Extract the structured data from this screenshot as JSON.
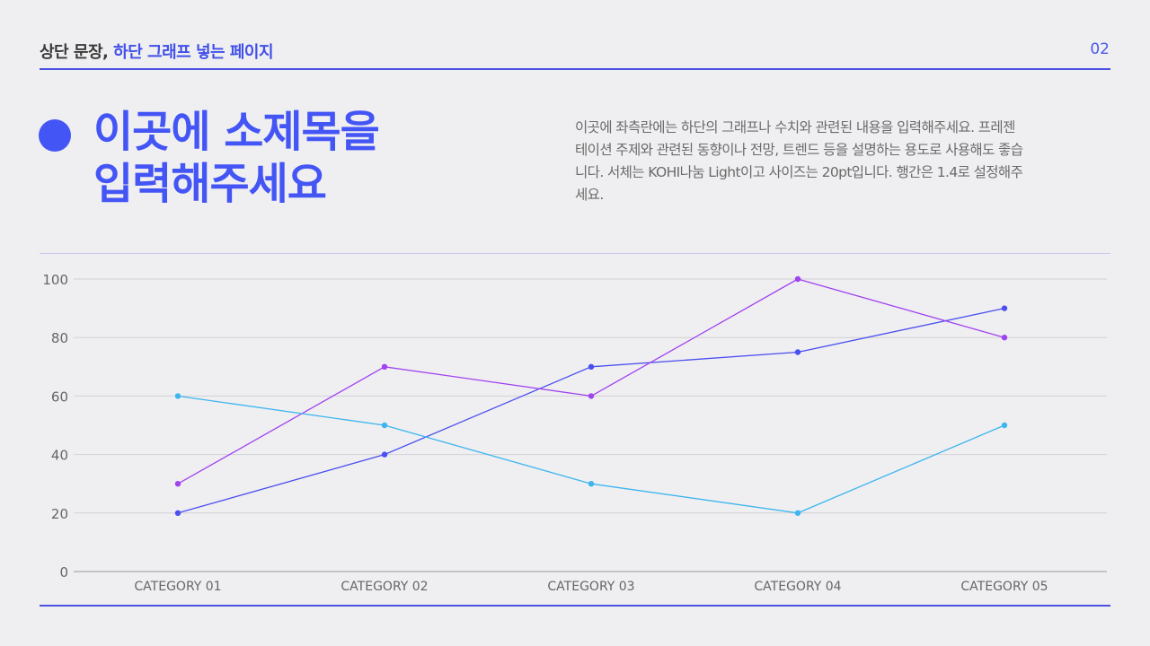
{
  "header": {
    "title_dark": "상단 문장,",
    "title_blue": "하단 그래프 넣는 페이지",
    "page_number": "02"
  },
  "subtitle": {
    "line1": "이곳에 소제목을",
    "line2": "입력해주세요"
  },
  "description": [
    "이곳에 좌측란에는 하단의 그래프나 수치와 관련된 내용을 입력해주세요. 프레젠",
    "테이션 주제와 관련된 동향이나 전망, 트렌드 등을 설명하는 용도로 사용해도 좋습",
    "니다. 서체는 KOHI나눔 Light이고 사이즈는 20pt입니다. 행간은 1.4로 설정해주",
    "세요."
  ],
  "colors": {
    "accent": "#4455f5"
  },
  "chart_data": {
    "type": "line",
    "categories": [
      "CATEGORY 01",
      "CATEGORY 02",
      "CATEGORY 03",
      "CATEGORY 04",
      "CATEGORY 05"
    ],
    "ylim": [
      0,
      100
    ],
    "yticks": [
      0,
      20,
      40,
      60,
      80,
      100
    ],
    "grid": true,
    "series": [
      {
        "values": [
          20,
          40,
          70,
          75,
          90
        ],
        "color": "#4a4ff0"
      },
      {
        "values": [
          30,
          70,
          60,
          100,
          80
        ],
        "color": "#a043f0"
      },
      {
        "values": [
          60,
          50,
          30,
          20,
          50
        ],
        "color": "#3db5ef"
      }
    ]
  }
}
